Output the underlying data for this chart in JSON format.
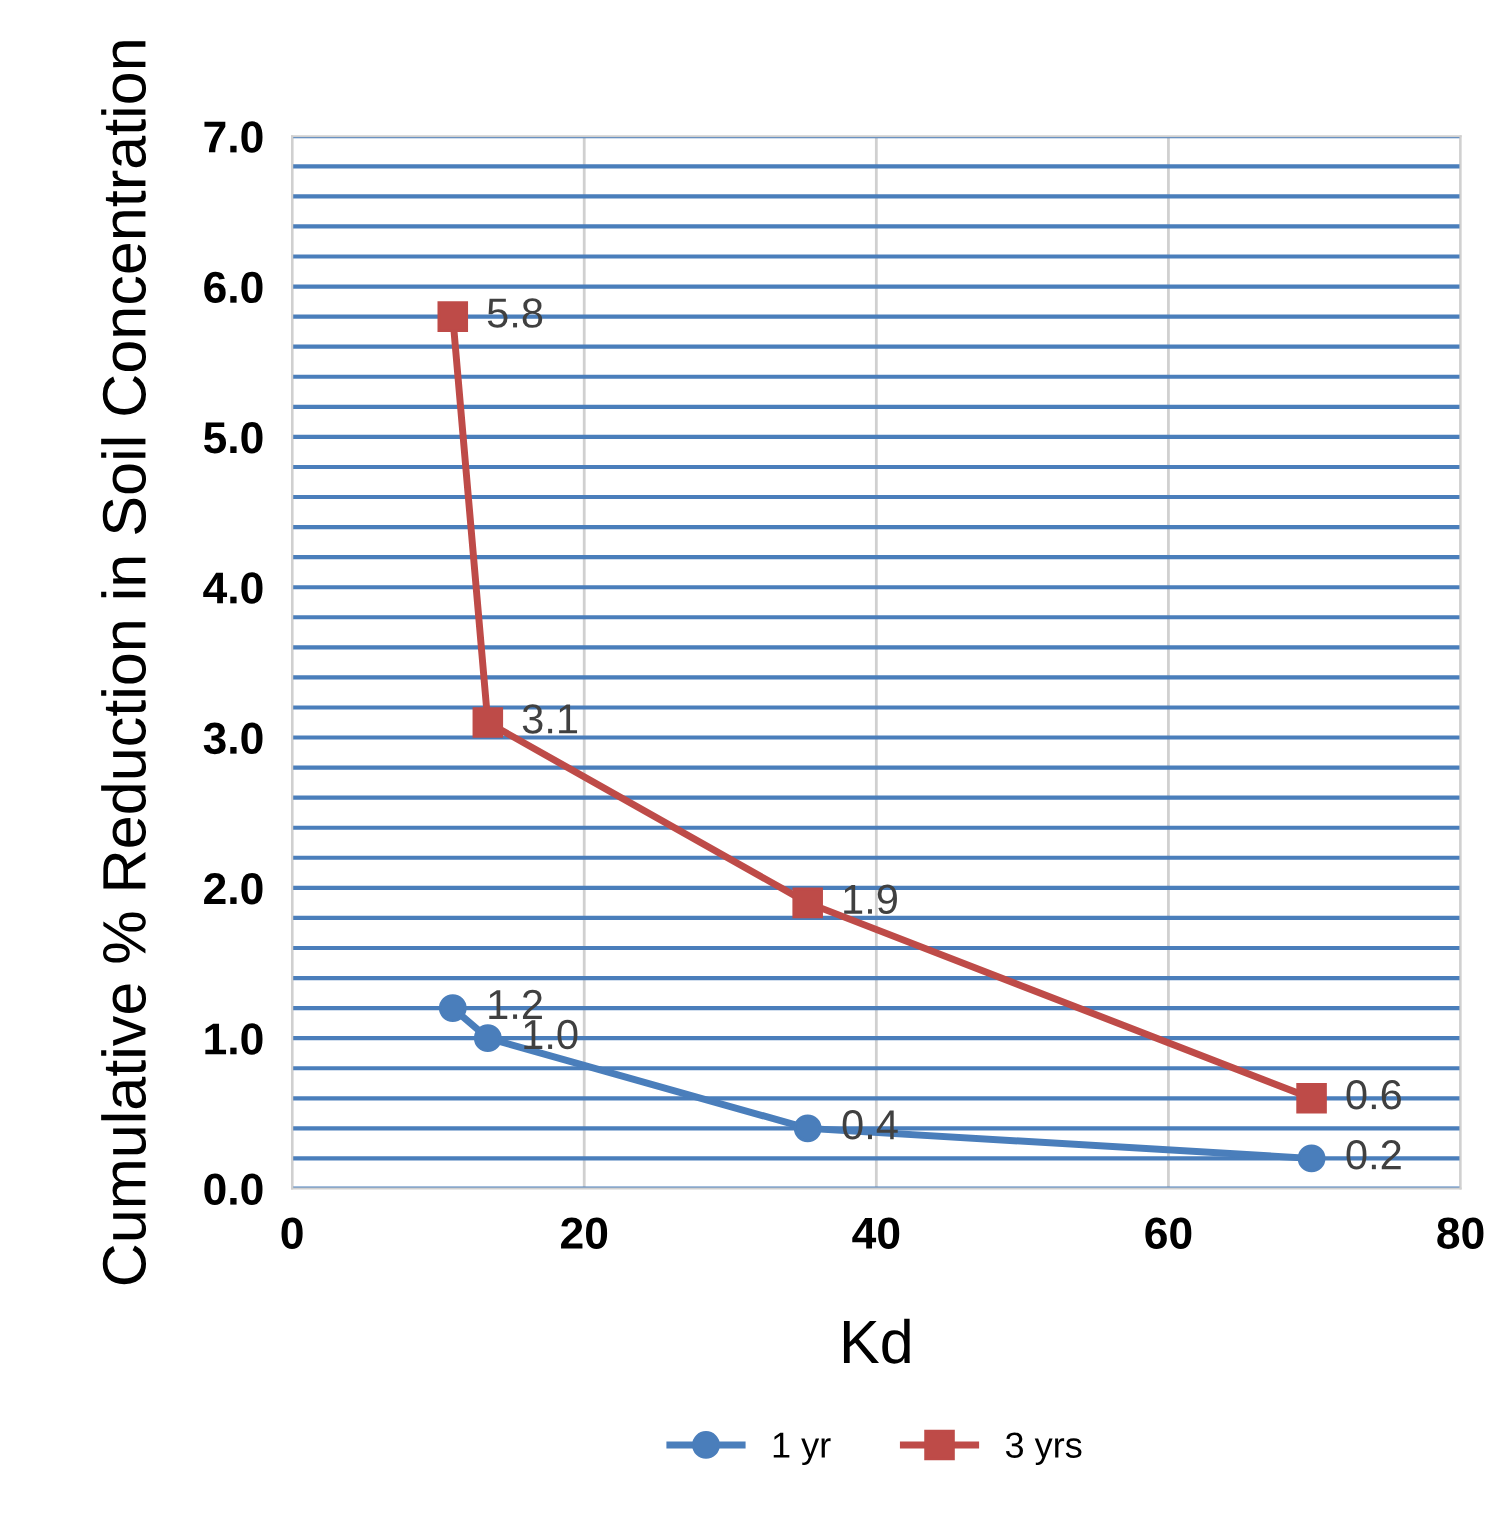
{
  "chart_data": {
    "type": "line",
    "xlabel": "Kd",
    "ylabel": "Cumulative % Reduction in Soil Concentration",
    "xlim": [
      0,
      80
    ],
    "xticks": [
      0,
      20,
      40,
      60,
      80
    ],
    "ylim": [
      0,
      7
    ],
    "yticks": [
      {
        "value": 0,
        "label": "0.0"
      },
      {
        "value": 0.2,
        "label": null
      },
      {
        "value": 0.4,
        "label": null
      },
      {
        "value": 0.6,
        "label": null
      },
      {
        "value": 0.8,
        "label": null
      },
      {
        "value": 1,
        "label": "1.0"
      },
      {
        "value": 1.2,
        "label": null
      },
      {
        "value": 1.4,
        "label": null
      },
      {
        "value": 1.6,
        "label": null
      },
      {
        "value": 1.8,
        "label": null
      },
      {
        "value": 2,
        "label": "2.0"
      },
      {
        "value": 2.2,
        "label": null
      },
      {
        "value": 2.4,
        "label": null
      },
      {
        "value": 2.6,
        "label": null
      },
      {
        "value": 2.8,
        "label": null
      },
      {
        "value": 3,
        "label": "3.0"
      },
      {
        "value": 3.2,
        "label": null
      },
      {
        "value": 3.4,
        "label": null
      },
      {
        "value": 3.6,
        "label": null
      },
      {
        "value": 3.8,
        "label": null
      },
      {
        "value": 4,
        "label": "4.0"
      },
      {
        "value": 4.2,
        "label": null
      },
      {
        "value": 4.4,
        "label": null
      },
      {
        "value": 4.6,
        "label": null
      },
      {
        "value": 4.8,
        "label": null
      },
      {
        "value": 5,
        "label": "5.0"
      },
      {
        "value": 5.2,
        "label": null
      },
      {
        "value": 5.4,
        "label": null
      },
      {
        "value": 5.6,
        "label": null
      },
      {
        "value": 5.8,
        "label": null
      },
      {
        "value": 6,
        "label": "6.0"
      },
      {
        "value": 6.2,
        "label": null
      },
      {
        "value": 6.4,
        "label": null
      },
      {
        "value": 6.6,
        "label": null
      },
      {
        "value": 6.8,
        "label": null
      },
      {
        "value": 7,
        "label": "7.0"
      }
    ],
    "grid": true,
    "legend": "bottom",
    "series": [
      {
        "name": "1 yr",
        "color": "#4a7ebb",
        "marker": "circle",
        "x": [
          11,
          13.4,
          35.3,
          69.8
        ],
        "values": [
          1.2,
          1.0,
          0.4,
          0.2
        ],
        "value_labels": [
          "1.2",
          "1.0",
          "0.4",
          "0.2"
        ]
      },
      {
        "name": "3 yrs",
        "color": "#be4b48",
        "marker": "square",
        "x": [
          11,
          13.4,
          35.3,
          69.8
        ],
        "values": [
          5.8,
          3.1,
          1.9,
          0.6
        ],
        "value_labels": [
          "5.8",
          "3.1",
          "1.9",
          "0.6"
        ]
      }
    ]
  }
}
